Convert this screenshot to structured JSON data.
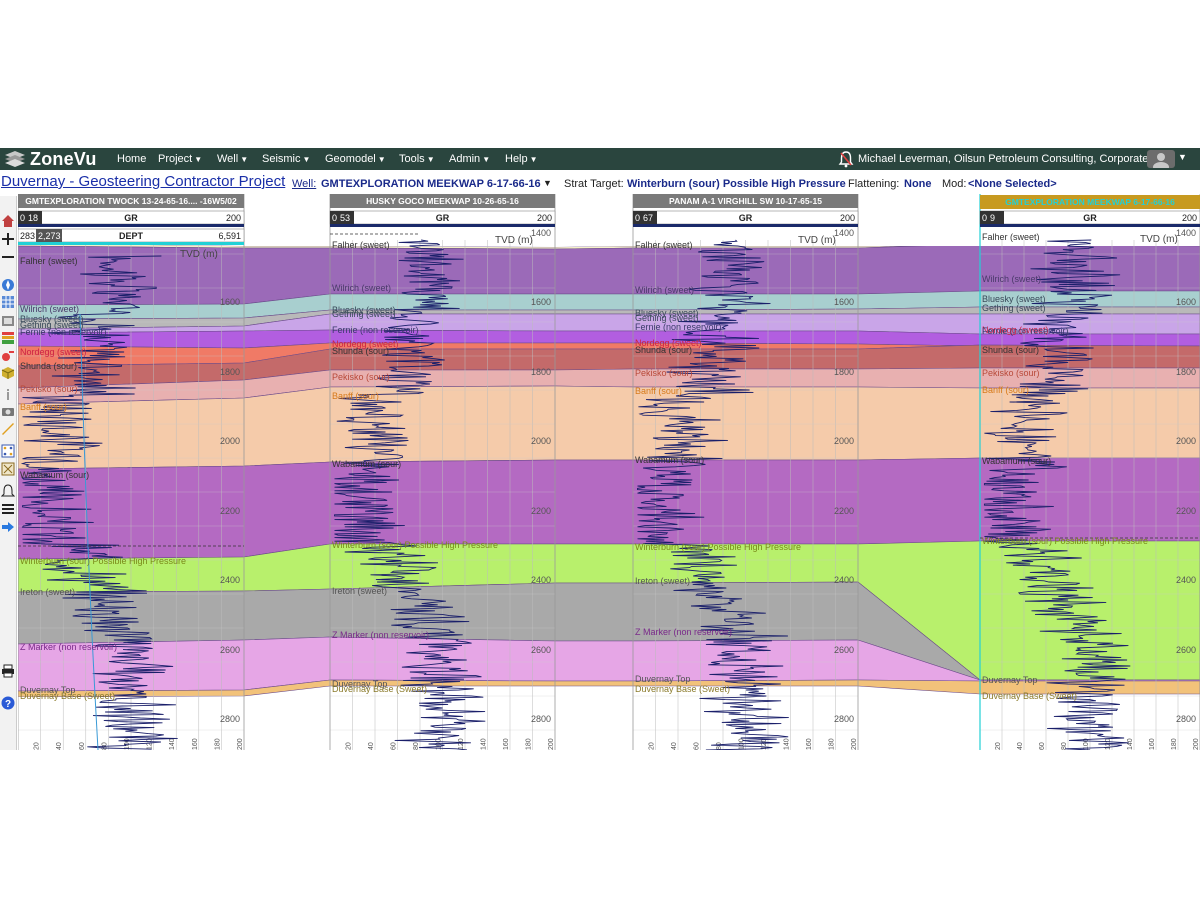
{
  "app": {
    "logo_text": "ZoneVu",
    "menu": [
      {
        "label": "Home",
        "caret": false
      },
      {
        "label": "Project",
        "caret": true
      },
      {
        "label": "Well",
        "caret": true
      },
      {
        "label": "Seismic",
        "caret": true
      },
      {
        "label": "Geomodel",
        "caret": true
      },
      {
        "label": "Tools",
        "caret": true
      },
      {
        "label": "Admin",
        "caret": true
      },
      {
        "label": "Help",
        "caret": true
      }
    ],
    "user": "Michael Leverman, Oilsun Petroleum Consulting, Corporate"
  },
  "project_bar": {
    "title": "Duvernay - Geosteering Contractor Project",
    "well_label": "Well:",
    "well_value": "GMTEXPLORATION MEEKWAP 6-17-66-16",
    "strat_label": "Strat Target:",
    "strat_value": "Winterburn (sour) Possible High Pressure",
    "flattening_label": "Flattening:",
    "flattening_value": "None",
    "mod_label": "Mod:",
    "mod_value": "<None Selected>"
  },
  "sidebar_icons": [
    "home-icon",
    "plus-icon",
    "minus-icon",
    "compass-icon",
    "grid-icon",
    "layers-icon",
    "stack-icon",
    "key-icon",
    "cube-icon",
    "info-icon",
    "camera-icon",
    "ruler-icon",
    "select-icon",
    "pattern-icon",
    "alert-icon",
    "list-icon",
    "arrows-icon",
    "print-icon",
    "help-icon"
  ],
  "tracks": [
    {
      "title": "GMTEXPLORATION TWOCK 13-24-65-16.... -16W5/02",
      "gr_min": "0",
      "gr_cur": "18",
      "gr_name": "GR",
      "gr_max": "200",
      "dept_min": "283",
      "dept_cur": "2,273",
      "dept_name": "DEPT",
      "dept_max": "6,591",
      "tvd_label": "TVD (m)",
      "highlight": false
    },
    {
      "title": "HUSKY GOCO MEEKWAP 10-26-65-16",
      "gr_min": "0",
      "gr_cur": "53",
      "gr_name": "GR",
      "gr_max": "200",
      "tvd_label": "TVD (m)",
      "highlight": false
    },
    {
      "title": "PANAM A-1 VIRGHILL SW 10-17-65-15",
      "gr_min": "0",
      "gr_cur": "67",
      "gr_name": "GR",
      "gr_max": "200",
      "tvd_label": "TVD (m)",
      "highlight": false
    },
    {
      "title": "GMTEXPLORATION MEEKWAP 6-17-66-16",
      "gr_min": "0",
      "gr_cur": "9",
      "gr_name": "GR",
      "gr_max": "200",
      "tvd_label": "TVD (m)",
      "highlight": true
    }
  ],
  "depth_ticks": [
    "1400",
    "1600",
    "1800",
    "2000",
    "2200",
    "2400",
    "2600",
    "2800"
  ],
  "gr_ticks": [
    "20",
    "40",
    "60",
    "80",
    "100",
    "120",
    "140",
    "160",
    "180",
    "200"
  ],
  "formations": [
    {
      "name": "Falher (sweet)",
      "color": "#f5f0c8",
      "label_color": "#333333"
    },
    {
      "name": "Wilrich (sweet)",
      "color": "#9b6ab8",
      "label_color": "#4a3a6a"
    },
    {
      "name": "Bluesky (sweet)",
      "color": "#a8cfcf",
      "label_color": "#3a4a5a"
    },
    {
      "name": "Gething (sweet)",
      "color": "#b9b9b9",
      "label_color": "#3a4a5a"
    },
    {
      "name": "Fernie (non reservoir)",
      "color": "#c9a5e8",
      "label_color": "#3a3a6a"
    },
    {
      "name": "Nordegg (sweet)",
      "color": "#b25ee0",
      "label_color": "#cc2244"
    },
    {
      "name": "Shunda (sour)",
      "color": "#f07a66",
      "label_color": "#333333"
    },
    {
      "name": "Pekisko (sour)",
      "color": "#c46a6a",
      "label_color": "#b84a3a"
    },
    {
      "name": "Banff (sour)",
      "color": "#e8b0b0",
      "label_color": "#d77a1a"
    },
    {
      "name": "Wabamum (sour)",
      "color": "#f5cbaa",
      "label_color": "#333333"
    },
    {
      "name": "Winterburn (sour) Possible High Pressure",
      "color": "#b46ac2",
      "label_color": "#7a8a1a"
    },
    {
      "name": "Ireton (sweet)",
      "color": "#b8f06c",
      "label_color": "#555555"
    },
    {
      "name": "Z Marker (non reservoir)",
      "color": "#a9a9a9",
      "label_color": "#7a2a8a"
    },
    {
      "name": "Duvernay Top",
      "color": "#e6a6e6",
      "label_color": "#555555"
    },
    {
      "name": "Duvernay Base (Sweet)",
      "color": "#f2c27a",
      "label_color": "#8a7a2a"
    }
  ]
}
